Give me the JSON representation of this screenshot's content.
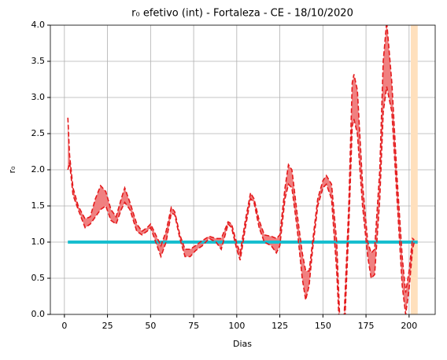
{
  "chart_data": {
    "type": "line",
    "title": "r₀ efetivo (int) - Fortaleza - CE - 18/10/2020",
    "xlabel": "Dias",
    "ylabel": "r₀",
    "x": [
      2,
      3,
      5,
      8,
      12,
      15,
      18,
      21,
      24,
      27,
      30,
      33,
      35,
      38,
      42,
      45,
      48,
      50,
      53,
      56,
      59,
      62,
      64,
      67,
      70,
      73,
      76,
      80,
      84,
      88,
      91,
      95,
      97,
      100,
      102,
      105,
      108,
      110,
      113,
      116,
      120,
      123,
      125,
      128,
      130,
      132,
      135,
      138,
      140,
      142,
      144,
      147,
      150,
      152,
      155,
      158,
      160,
      162,
      165,
      167,
      168,
      170,
      173,
      176,
      178,
      180,
      183,
      185,
      187,
      190,
      193,
      196,
      198,
      200,
      202,
      203
    ],
    "series": [
      {
        "color": "#e41a1c",
        "values": [
          2.72,
          2.2,
          1.75,
          1.5,
          1.32,
          1.35,
          1.6,
          1.78,
          1.7,
          1.45,
          1.35,
          1.6,
          1.75,
          1.55,
          1.25,
          1.15,
          1.2,
          1.25,
          1.1,
          0.95,
          1.15,
          1.48,
          1.42,
          1.1,
          0.9,
          0.9,
          0.95,
          1.02,
          1.08,
          1.05,
          1.05,
          1.28,
          1.25,
          0.98,
          0.85,
          1.3,
          1.68,
          1.6,
          1.3,
          1.1,
          1.08,
          1.05,
          1.1,
          1.75,
          2.07,
          2.0,
          1.4,
          0.85,
          0.6,
          0.6,
          1.0,
          1.6,
          1.85,
          1.92,
          1.8,
          1.0,
          -0.2,
          -0.2,
          1.5,
          3.2,
          3.32,
          3.1,
          1.8,
          1.0,
          0.85,
          0.9,
          2.0,
          3.5,
          4.05,
          3.2,
          1.9,
          0.8,
          0.3,
          0.6,
          1.05,
          1.03
        ]
      },
      {
        "color": "#e41a1c",
        "values": [
          2.0,
          2.1,
          1.65,
          1.45,
          1.2,
          1.25,
          1.35,
          1.45,
          1.5,
          1.3,
          1.25,
          1.45,
          1.55,
          1.45,
          1.15,
          1.1,
          1.15,
          1.2,
          1.0,
          0.8,
          1.0,
          1.4,
          1.38,
          1.05,
          0.8,
          0.8,
          0.88,
          0.95,
          1.05,
          1.0,
          0.9,
          1.25,
          1.2,
          0.9,
          0.75,
          1.2,
          1.6,
          1.55,
          1.2,
          1.0,
          0.95,
          0.85,
          0.95,
          1.6,
          1.8,
          1.75,
          1.2,
          0.5,
          0.2,
          0.4,
          0.9,
          1.5,
          1.75,
          1.8,
          1.6,
          0.6,
          -0.4,
          -0.5,
          1.2,
          2.6,
          2.7,
          2.5,
          1.5,
          0.8,
          0.5,
          0.55,
          1.6,
          2.8,
          3.15,
          2.8,
          1.6,
          0.4,
          0.0,
          0.35,
          0.9,
          1.0
        ]
      }
    ],
    "fill_color": "#f08080",
    "reference": {
      "x": [
        2,
        205
      ],
      "values": [
        1,
        1
      ],
      "color": "#17becf"
    },
    "span": {
      "x": [
        201,
        205
      ],
      "color": "#ffe0bd"
    },
    "xlim": [
      -8.15,
      215.15
    ],
    "ylim": [
      0,
      4
    ],
    "xticks": [
      0,
      25,
      50,
      75,
      100,
      125,
      150,
      175,
      200
    ],
    "yticks": [
      {
        "value": 0,
        "label": "0.0"
      },
      0.5,
      {
        "value": 1,
        "label": "1.0"
      },
      1.5,
      {
        "value": 2,
        "label": "2.0"
      },
      2.5,
      {
        "value": 3,
        "label": "3.0"
      },
      3.5,
      {
        "value": 4,
        "label": "4.0"
      }
    ],
    "grid": true
  }
}
